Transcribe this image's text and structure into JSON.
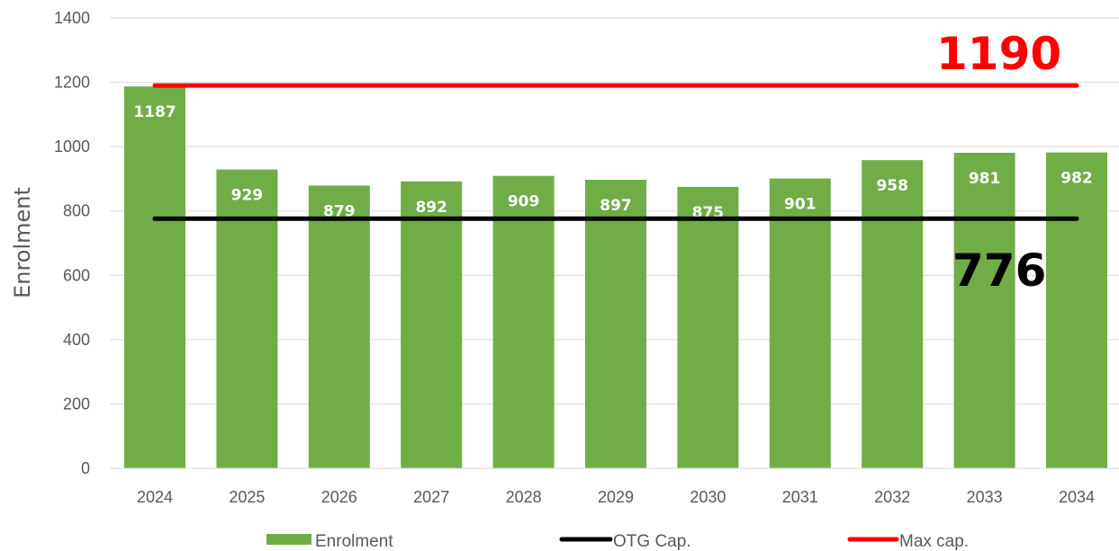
{
  "chart_data": {
    "type": "bar",
    "ylabel": "Enrolment",
    "ylim": [
      0,
      1400
    ],
    "yticks": [
      "0",
      "200",
      "400",
      "600",
      "800",
      "1000",
      "1200",
      "1400"
    ],
    "categories": [
      "2024",
      "2025",
      "2026",
      "2027",
      "2028",
      "2029",
      "2030",
      "2031",
      "2032",
      "2033",
      "2034"
    ],
    "series": [
      {
        "name": "Enrolment",
        "type": "bar",
        "color": "#70ad47",
        "values": [
          1187,
          929,
          879,
          892,
          909,
          897,
          875,
          901,
          958,
          981,
          982
        ],
        "labels": [
          "1187",
          "929",
          "879",
          "892",
          "909",
          "897",
          "875",
          "901",
          "958",
          "981",
          "982"
        ]
      },
      {
        "name": "OTG Cap.",
        "type": "line",
        "color": "#000000",
        "value": 776
      },
      {
        "name": "Max cap.",
        "type": "line",
        "color": "#ff0000",
        "value": 1190
      }
    ],
    "annotations": {
      "max_cap": "1190",
      "otg_cap": "776"
    },
    "grid": true,
    "legend_position": "bottom"
  }
}
